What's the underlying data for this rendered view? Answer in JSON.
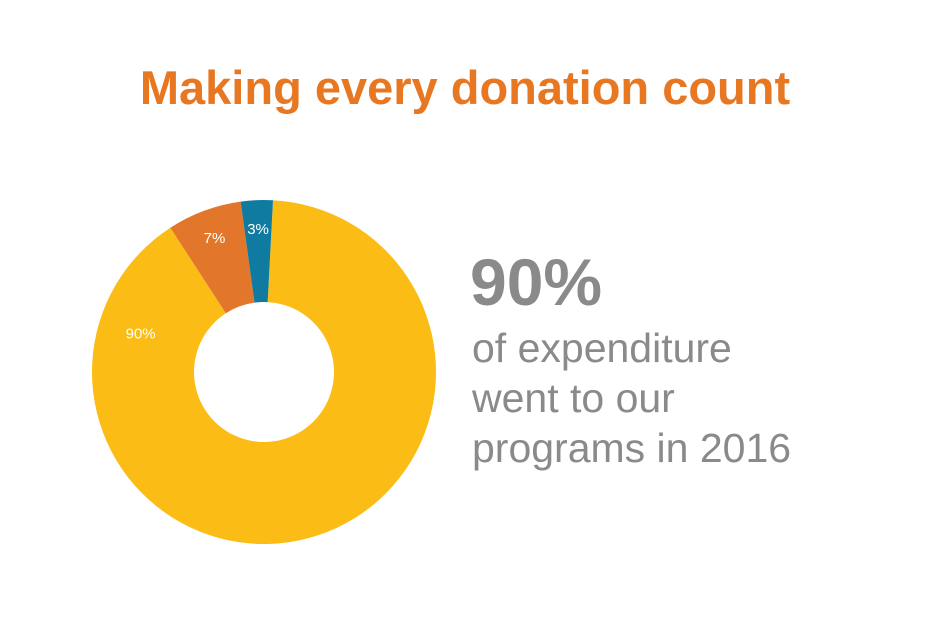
{
  "chart_data": {
    "type": "donut",
    "title": "Making every donation count",
    "values": [
      90,
      7,
      3
    ],
    "value_labels": [
      "90%",
      "7%",
      "3%"
    ],
    "colors": [
      "#fbbc15",
      "#e2762a",
      "#0f7ba0"
    ],
    "annotation": {
      "headline": "90%",
      "lines": [
        "of expenditure",
        "went to our",
        "programs in 2016"
      ]
    }
  }
}
